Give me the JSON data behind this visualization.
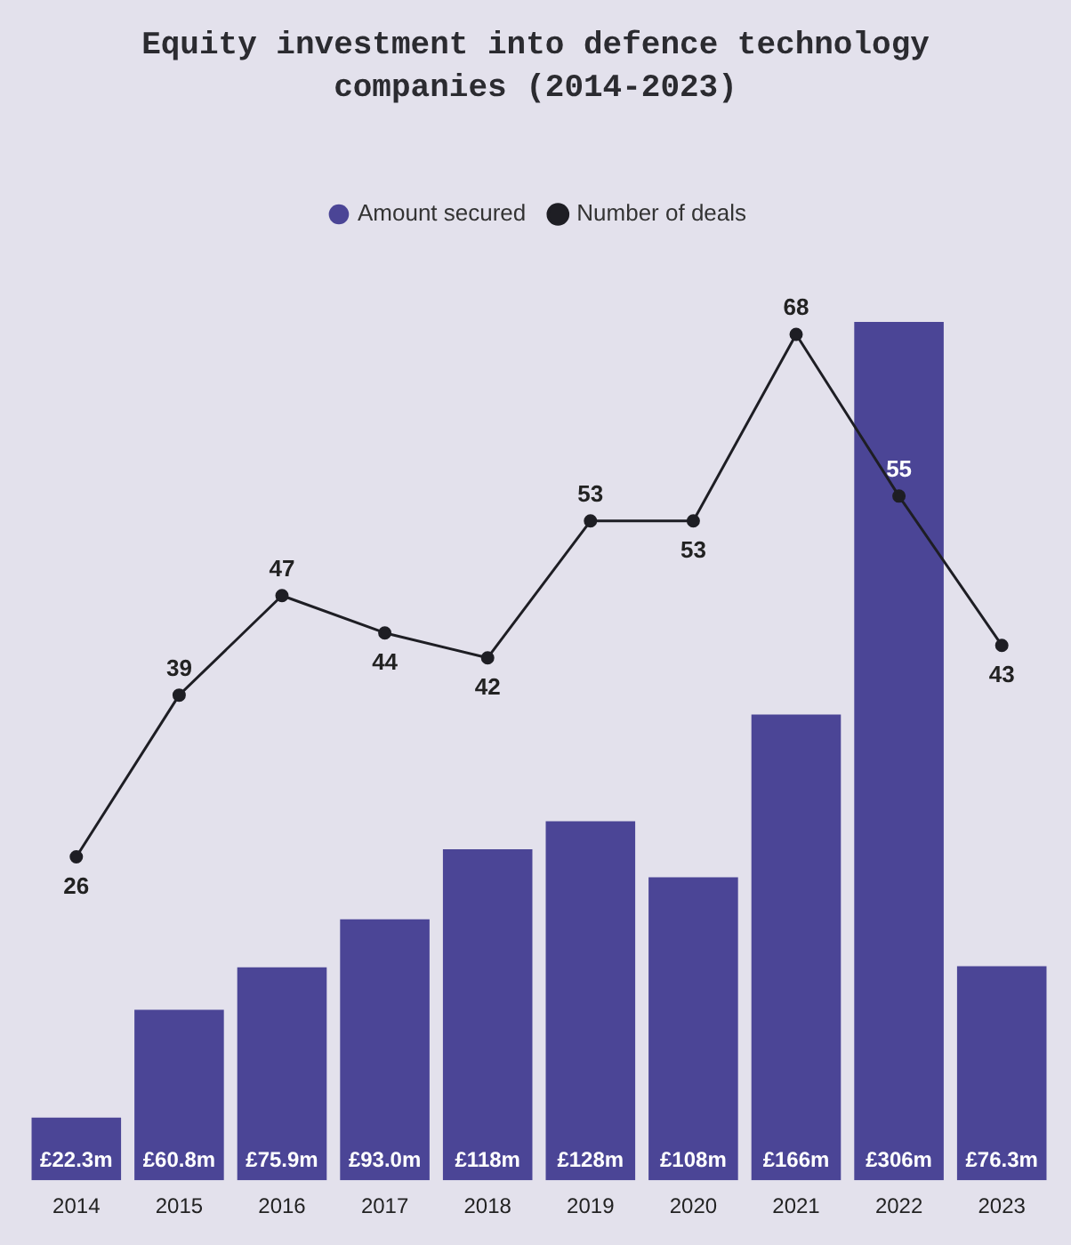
{
  "chart_data": {
    "type": "bar",
    "title": "Equity investment into defence technology companies (2014-2023)",
    "categories": [
      "2014",
      "2015",
      "2016",
      "2017",
      "2018",
      "2019",
      "2020",
      "2021",
      "2022",
      "2023"
    ],
    "series": [
      {
        "name": "Amount secured",
        "color": "#4b4596",
        "values": [
          22.3,
          60.8,
          75.9,
          93.0,
          118,
          128,
          108,
          166,
          306,
          76.3
        ],
        "value_labels": [
          "£22.3m",
          "£60.8m",
          "£75.9m",
          "£93.0m",
          "£118m",
          "£128m",
          "£108m",
          "£166m",
          "£306m",
          "£76.3m"
        ]
      },
      {
        "name": "Number of deals",
        "type": "line",
        "axis": "y2",
        "color": "#1e1e24",
        "values": [
          26,
          39,
          47,
          44,
          42,
          53,
          53,
          68,
          55,
          43
        ]
      }
    ],
    "data_labels": true,
    "ylim": [
      0,
      306
    ],
    "y2lim": [
      0,
      69
    ],
    "tick_labels": "x",
    "legend": "top",
    "marker": "circle",
    "grid": false
  }
}
